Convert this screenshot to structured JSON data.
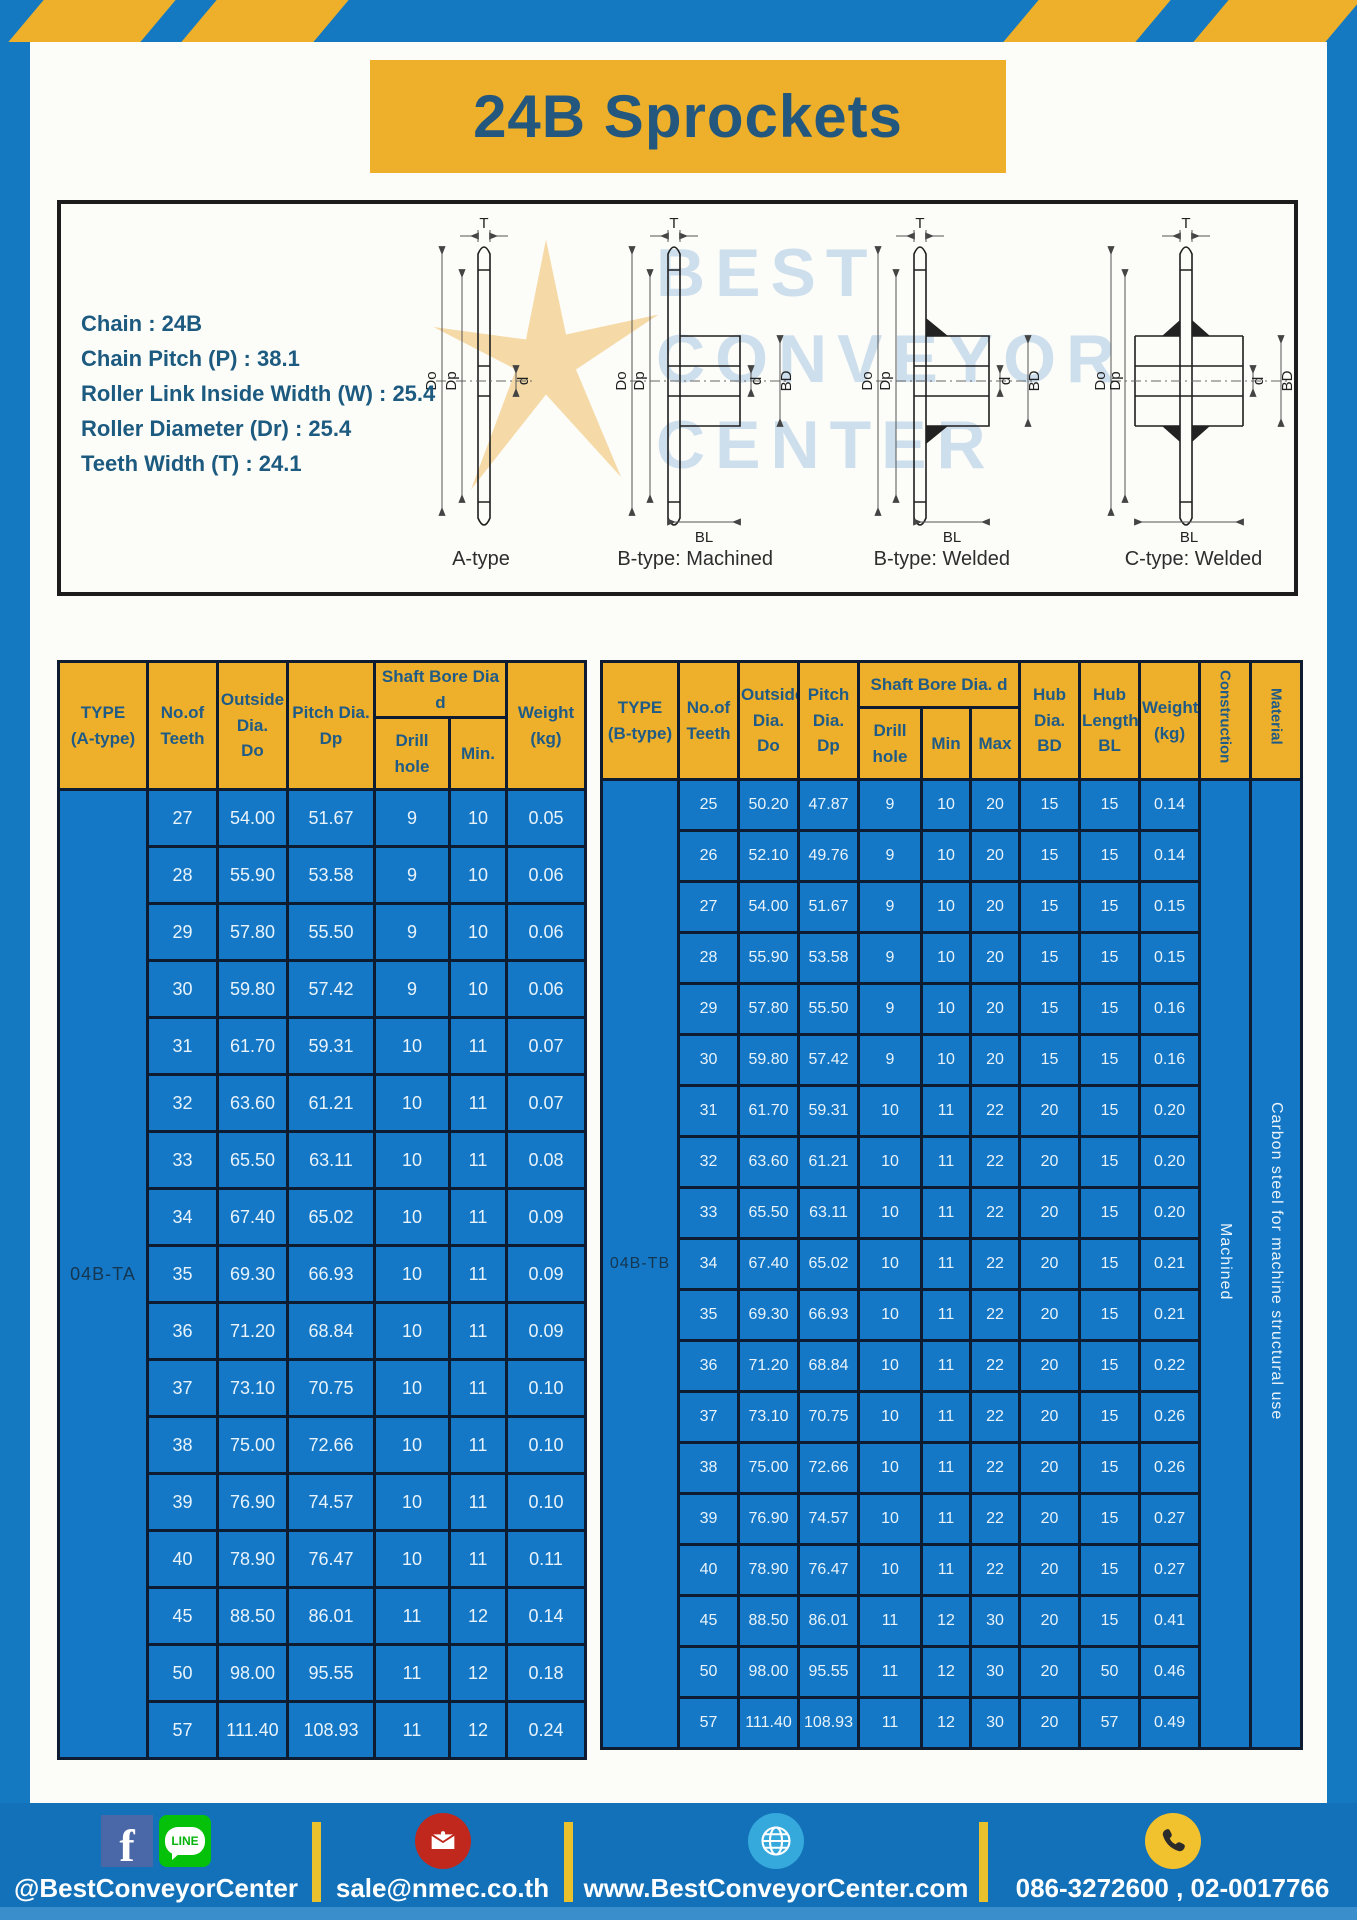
{
  "title": "24B Sprockets",
  "specs": {
    "lines": [
      "Chain : 24B",
      "Chain Pitch (P) : 38.1",
      "Roller Link Inside Width (W) : 25.4",
      "Roller Diameter (Dr) : 25.4",
      "Teeth Width (T) : 24.1"
    ]
  },
  "diagrams": {
    "captions": [
      "A-type",
      "B-type: Machined",
      "B-type: Welded",
      "C-type: Welded"
    ],
    "dims": {
      "T": "T",
      "Do": "Do",
      "Dp": "Dp",
      "d": "d",
      "BD": "BD",
      "BL": "BL"
    },
    "watermark": [
      "BEST",
      "CONVEYOR",
      "CENTER"
    ]
  },
  "table_a": {
    "headers": {
      "type": "TYPE\n(A-type)",
      "teeth": "No.of\nTeeth",
      "outside": "Outside\nDia.\nDo",
      "pitch": "Pitch Dia.\nDp",
      "shaft_group": "Shaft Bore Dia d",
      "drill": "Drill hole",
      "min": "Min.",
      "weight": "Weight\n(kg)"
    },
    "type_value": "04B-TA",
    "rows": [
      [
        "27",
        "54.00",
        "51.67",
        "9",
        "10",
        "0.05"
      ],
      [
        "28",
        "55.90",
        "53.58",
        "9",
        "10",
        "0.06"
      ],
      [
        "29",
        "57.80",
        "55.50",
        "9",
        "10",
        "0.06"
      ],
      [
        "30",
        "59.80",
        "57.42",
        "9",
        "10",
        "0.06"
      ],
      [
        "31",
        "61.70",
        "59.31",
        "10",
        "11",
        "0.07"
      ],
      [
        "32",
        "63.60",
        "61.21",
        "10",
        "11",
        "0.07"
      ],
      [
        "33",
        "65.50",
        "63.11",
        "10",
        "11",
        "0.08"
      ],
      [
        "34",
        "67.40",
        "65.02",
        "10",
        "11",
        "0.09"
      ],
      [
        "35",
        "69.30",
        "66.93",
        "10",
        "11",
        "0.09"
      ],
      [
        "36",
        "71.20",
        "68.84",
        "10",
        "11",
        "0.09"
      ],
      [
        "37",
        "73.10",
        "70.75",
        "10",
        "11",
        "0.10"
      ],
      [
        "38",
        "75.00",
        "72.66",
        "10",
        "11",
        "0.10"
      ],
      [
        "39",
        "76.90",
        "74.57",
        "10",
        "11",
        "0.10"
      ],
      [
        "40",
        "78.90",
        "76.47",
        "10",
        "11",
        "0.11"
      ],
      [
        "45",
        "88.50",
        "86.01",
        "11",
        "12",
        "0.14"
      ],
      [
        "50",
        "98.00",
        "95.55",
        "11",
        "12",
        "0.18"
      ],
      [
        "57",
        "111.40",
        "108.93",
        "11",
        "12",
        "0.24"
      ]
    ]
  },
  "table_b": {
    "headers": {
      "type": "TYPE\n(B-type)",
      "teeth": "No.of\nTeeth",
      "outside": "Outside\nDia.\nDo",
      "pitch": "Pitch\nDia.\nDp",
      "shaft_group": "Shaft Bore Dia. d",
      "drill": "Drill hole",
      "min": "Min",
      "max": "Max",
      "hub_dia": "Hub\nDia.\nBD",
      "hub_len": "Hub\nLength\nBL",
      "weight": "Weight\n(kg)",
      "construction": "Construction",
      "material": "Material"
    },
    "type_value": "04B-TB",
    "construction_value": "Machined",
    "material_value": "Carbon steel for machine structural use",
    "rows": [
      [
        "25",
        "50.20",
        "47.87",
        "9",
        "10",
        "20",
        "15",
        "15",
        "0.14"
      ],
      [
        "26",
        "52.10",
        "49.76",
        "9",
        "10",
        "20",
        "15",
        "15",
        "0.14"
      ],
      [
        "27",
        "54.00",
        "51.67",
        "9",
        "10",
        "20",
        "15",
        "15",
        "0.15"
      ],
      [
        "28",
        "55.90",
        "53.58",
        "9",
        "10",
        "20",
        "15",
        "15",
        "0.15"
      ],
      [
        "29",
        "57.80",
        "55.50",
        "9",
        "10",
        "20",
        "15",
        "15",
        "0.16"
      ],
      [
        "30",
        "59.80",
        "57.42",
        "9",
        "10",
        "20",
        "15",
        "15",
        "0.16"
      ],
      [
        "31",
        "61.70",
        "59.31",
        "10",
        "11",
        "22",
        "20",
        "15",
        "0.20"
      ],
      [
        "32",
        "63.60",
        "61.21",
        "10",
        "11",
        "22",
        "20",
        "15",
        "0.20"
      ],
      [
        "33",
        "65.50",
        "63.11",
        "10",
        "11",
        "22",
        "20",
        "15",
        "0.20"
      ],
      [
        "34",
        "67.40",
        "65.02",
        "10",
        "11",
        "22",
        "20",
        "15",
        "0.21"
      ],
      [
        "35",
        "69.30",
        "66.93",
        "10",
        "11",
        "22",
        "20",
        "15",
        "0.21"
      ],
      [
        "36",
        "71.20",
        "68.84",
        "10",
        "11",
        "22",
        "20",
        "15",
        "0.22"
      ],
      [
        "37",
        "73.10",
        "70.75",
        "10",
        "11",
        "22",
        "20",
        "15",
        "0.26"
      ],
      [
        "38",
        "75.00",
        "72.66",
        "10",
        "11",
        "22",
        "20",
        "15",
        "0.26"
      ],
      [
        "39",
        "76.90",
        "74.57",
        "10",
        "11",
        "22",
        "20",
        "15",
        "0.27"
      ],
      [
        "40",
        "78.90",
        "76.47",
        "10",
        "11",
        "22",
        "20",
        "15",
        "0.27"
      ],
      [
        "45",
        "88.50",
        "86.01",
        "11",
        "12",
        "30",
        "20",
        "15",
        "0.41"
      ],
      [
        "50",
        "98.00",
        "95.55",
        "11",
        "12",
        "30",
        "20",
        "50",
        "0.46"
      ],
      [
        "57",
        "111.40",
        "108.93",
        "11",
        "12",
        "30",
        "20",
        "57",
        "0.49"
      ]
    ]
  },
  "footer": {
    "social_label": "@BestConveyorCenter",
    "line_text": "LINE",
    "email": "sale@nmec.co.th",
    "website": "www.BestConveyorCenter.com",
    "phone": "086-3272600 , 02-0017766"
  },
  "colors": {
    "frame_blue": "#1579c2",
    "accent_yellow": "#eeb02b",
    "table_body_blue": "#1478c6",
    "navy_text": "#1f5b86",
    "border_dark": "#0d1c30",
    "footer_blue": "#1271b8",
    "facebook_blue": "#4a67a8",
    "line_green": "#06c10a",
    "mail_red": "#c0271d",
    "globe_blue": "#35a8dc",
    "phone_yellow": "#f2c12e"
  }
}
